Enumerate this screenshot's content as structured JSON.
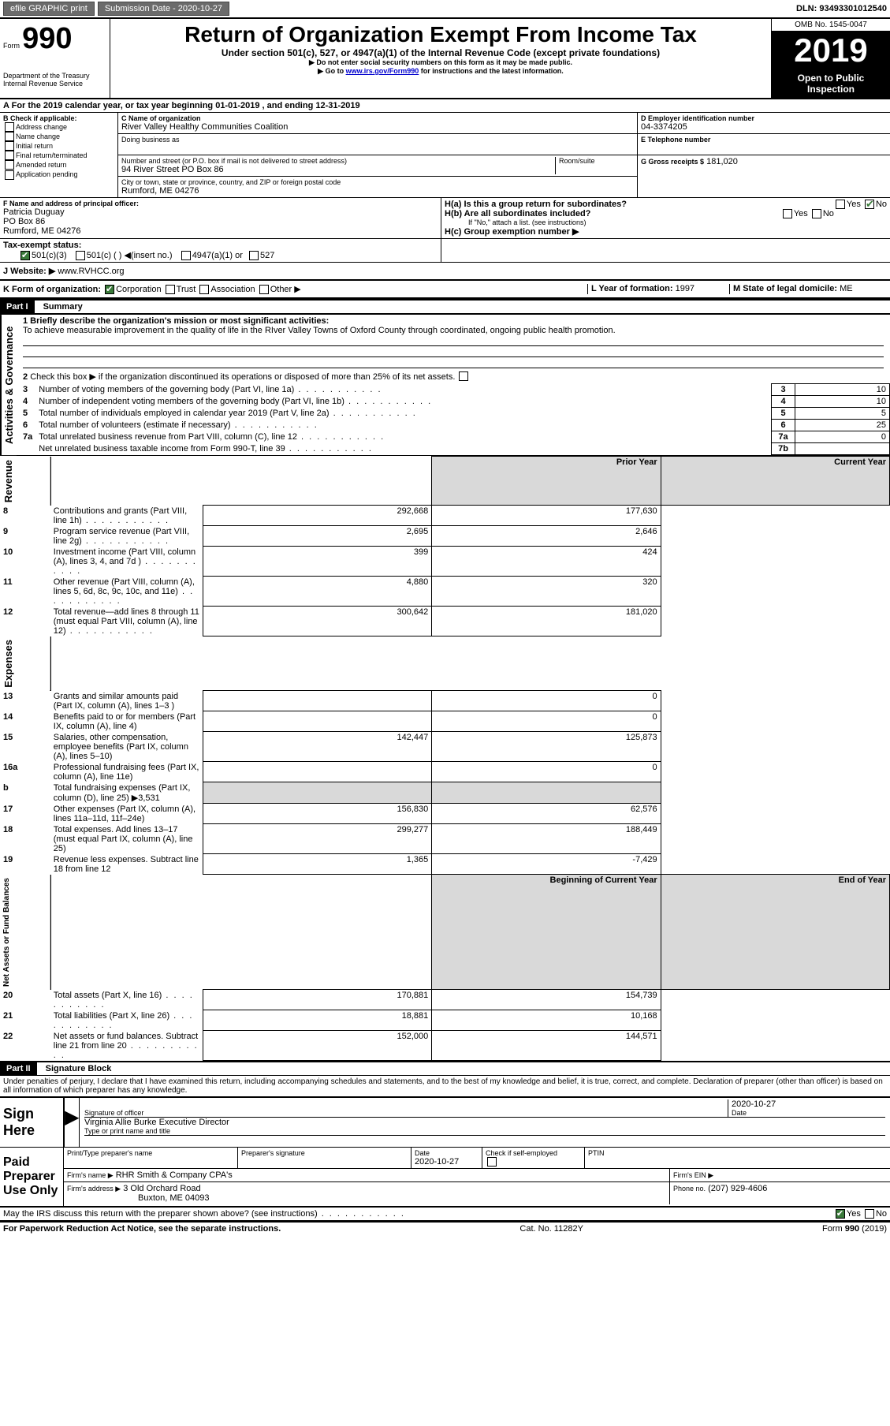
{
  "topbar": {
    "efile": "efile GRAPHIC print",
    "submission_label": "Submission Date - 2020-10-27",
    "dln": "DLN: 93493301012540"
  },
  "header": {
    "form_word": "Form",
    "form_num": "990",
    "dept": "Department of the Treasury\nInternal Revenue Service",
    "title": "Return of Organization Exempt From Income Tax",
    "subtitle": "Under section 501(c), 527, or 4947(a)(1) of the Internal Revenue Code (except private foundations)",
    "note1": "▶ Do not enter social security numbers on this form as it may be made public.",
    "note2_pre": "▶ Go to ",
    "note2_link": "www.irs.gov/Form990",
    "note2_post": " for instructions and the latest information.",
    "omb": "OMB No. 1545-0047",
    "year": "2019",
    "inspect": "Open to Public Inspection"
  },
  "periodA": "For the 2019 calendar year, or tax year beginning 01-01-2019    , and ending 12-31-2019",
  "boxB": {
    "label": "B Check if applicable:",
    "opts": [
      "Address change",
      "Name change",
      "Initial return",
      "Final return/terminated",
      "Amended return",
      "Application pending"
    ]
  },
  "boxC": {
    "name_label": "C Name of organization",
    "name": "River Valley Healthy Communities Coalition",
    "dba_label": "Doing business as",
    "addr_label": "Number and street (or P.O. box if mail is not delivered to street address)",
    "room_label": "Room/suite",
    "addr": "94 River Street PO Box 86",
    "city_label": "City or town, state or province, country, and ZIP or foreign postal code",
    "city": "Rumford, ME  04276"
  },
  "boxD": {
    "label": "D Employer identification number",
    "val": "04-3374205"
  },
  "boxE": {
    "label": "E Telephone number"
  },
  "boxG": {
    "label": "G Gross receipts $",
    "val": "181,020"
  },
  "boxF": {
    "label": "F  Name and address of principal officer:",
    "name": "Patricia Duguay",
    "addr1": "PO Box 86",
    "addr2": "Rumford, ME  04276"
  },
  "boxH": {
    "a": "H(a)  Is this a group return for subordinates?",
    "b": "H(b)  Are all subordinates included?",
    "note": "If \"No,\" attach a list. (see instructions)",
    "c": "H(c)  Group exemption number ▶",
    "yes": "Yes",
    "no": "No"
  },
  "taxexempt": {
    "label": "Tax-exempt status:",
    "o1": "501(c)(3)",
    "o2": "501(c) (   ) ◀(insert no.)",
    "o3": "4947(a)(1) or",
    "o4": "527"
  },
  "website": {
    "label": "J    Website: ▶",
    "val": "www.RVHCC.org"
  },
  "boxK": {
    "label": "K Form of organization:",
    "opts": [
      "Corporation",
      "Trust",
      "Association",
      "Other ▶"
    ]
  },
  "boxL": {
    "label": "L Year of formation:",
    "val": "1997"
  },
  "boxM": {
    "label": "M State of legal domicile:",
    "val": "ME"
  },
  "part1": {
    "hdr": "Part I",
    "title": "Summary"
  },
  "mission": {
    "label": "1  Briefly describe the organization's mission or most significant activities:",
    "text": "To achieve measurable improvement in the quality of life in the RIver Valley Towns of Oxford County through coordinated, ongoing public health promotion."
  },
  "line2": "Check this box ▶       if the organization discontinued its operations or disposed of more than 25% of its net assets.",
  "governance": [
    {
      "n": "3",
      "t": "Number of voting members of the governing body (Part VI, line 1a)",
      "i": "3",
      "v": "10"
    },
    {
      "n": "4",
      "t": "Number of independent voting members of the governing body (Part VI, line 1b)",
      "i": "4",
      "v": "10"
    },
    {
      "n": "5",
      "t": "Total number of individuals employed in calendar year 2019 (Part V, line 2a)",
      "i": "5",
      "v": "5"
    },
    {
      "n": "6",
      "t": "Total number of volunteers (estimate if necessary)",
      "i": "6",
      "v": "25"
    },
    {
      "n": "7a",
      "t": "Total unrelated business revenue from Part VIII, column (C), line 12",
      "i": "7a",
      "v": "0"
    },
    {
      "n": "",
      "t": "Net unrelated business taxable income from Form 990-T, line 39",
      "i": "7b",
      "v": ""
    }
  ],
  "col_headers": {
    "prior": "Prior Year",
    "current": "Current Year",
    "begin": "Beginning of Current Year",
    "end": "End of Year"
  },
  "revenue": [
    {
      "n": "8",
      "t": "Contributions and grants (Part VIII, line 1h)",
      "p": "292,668",
      "c": "177,630"
    },
    {
      "n": "9",
      "t": "Program service revenue (Part VIII, line 2g)",
      "p": "2,695",
      "c": "2,646"
    },
    {
      "n": "10",
      "t": "Investment income (Part VIII, column (A), lines 3, 4, and 7d )",
      "p": "399",
      "c": "424"
    },
    {
      "n": "11",
      "t": "Other revenue (Part VIII, column (A), lines 5, 6d, 8c, 9c, 10c, and 11e)",
      "p": "4,880",
      "c": "320"
    },
    {
      "n": "12",
      "t": "Total revenue—add lines 8 through 11 (must equal Part VIII, column (A), line 12)",
      "p": "300,642",
      "c": "181,020"
    }
  ],
  "expenses": [
    {
      "n": "13",
      "t": "Grants and similar amounts paid (Part IX, column (A), lines 1–3 )",
      "p": "",
      "c": "0"
    },
    {
      "n": "14",
      "t": "Benefits paid to or for members (Part IX, column (A), line 4)",
      "p": "",
      "c": "0"
    },
    {
      "n": "15",
      "t": "Salaries, other compensation, employee benefits (Part IX, column (A), lines 5–10)",
      "p": "142,447",
      "c": "125,873"
    },
    {
      "n": "16a",
      "t": "Professional fundraising fees (Part IX, column (A), line 11e)",
      "p": "",
      "c": "0"
    },
    {
      "n": "b",
      "t": "Total fundraising expenses (Part IX, column (D), line 25) ▶3,531",
      "p": "",
      "c": "",
      "shade": true
    },
    {
      "n": "17",
      "t": "Other expenses (Part IX, column (A), lines 11a–11d, 11f–24e)",
      "p": "156,830",
      "c": "62,576"
    },
    {
      "n": "18",
      "t": "Total expenses. Add lines 13–17 (must equal Part IX, column (A), line 25)",
      "p": "299,277",
      "c": "188,449"
    },
    {
      "n": "19",
      "t": "Revenue less expenses. Subtract line 18 from line 12",
      "p": "1,365",
      "c": "-7,429"
    }
  ],
  "netassets": [
    {
      "n": "20",
      "t": "Total assets (Part X, line 16)",
      "p": "170,881",
      "c": "154,739"
    },
    {
      "n": "21",
      "t": "Total liabilities (Part X, line 26)",
      "p": "18,881",
      "c": "10,168"
    },
    {
      "n": "22",
      "t": "Net assets or fund balances. Subtract line 21 from line 20",
      "p": "152,000",
      "c": "144,571"
    }
  ],
  "vlabels": {
    "act": "Activities & Governance",
    "rev": "Revenue",
    "exp": "Expenses",
    "net": "Net Assets or\nFund Balances"
  },
  "part2": {
    "hdr": "Part II",
    "title": "Signature Block"
  },
  "penalties": "Under penalties of perjury, I declare that I have examined this return, including accompanying schedules and statements, and to the best of my knowledge and belief, it is true, correct, and complete. Declaration of preparer (other than officer) is based on all information of which preparer has any knowledge.",
  "sign": {
    "here": "Sign Here",
    "sig_label": "Signature of officer",
    "date_label": "Date",
    "date": "2020-10-27",
    "name": "Virginia Allie Burke  Executive Director",
    "name_label": "Type or print name and title"
  },
  "preparer": {
    "title": "Paid Preparer Use Only",
    "name_label": "Print/Type preparer's name",
    "sig_label": "Preparer's signature",
    "date_label": "Date",
    "date": "2020-10-27",
    "check_label": "Check        if self-employed",
    "ptin_label": "PTIN",
    "firm_label": "Firm's name    ▶",
    "firm": "RHR Smith & Company CPA's",
    "ein_label": "Firm's EIN ▶",
    "addr_label": "Firm's address ▶",
    "addr": "3 Old Orchard Road",
    "addr2": "Buxton, ME  04093",
    "phone_label": "Phone no.",
    "phone": "(207) 929-4606"
  },
  "discuss": "May the IRS discuss this return with the preparer shown above? (see instructions)",
  "footer": {
    "left": "For Paperwork Reduction Act Notice, see the separate instructions.",
    "mid": "Cat. No. 11282Y",
    "right": "Form 990 (2019)"
  }
}
